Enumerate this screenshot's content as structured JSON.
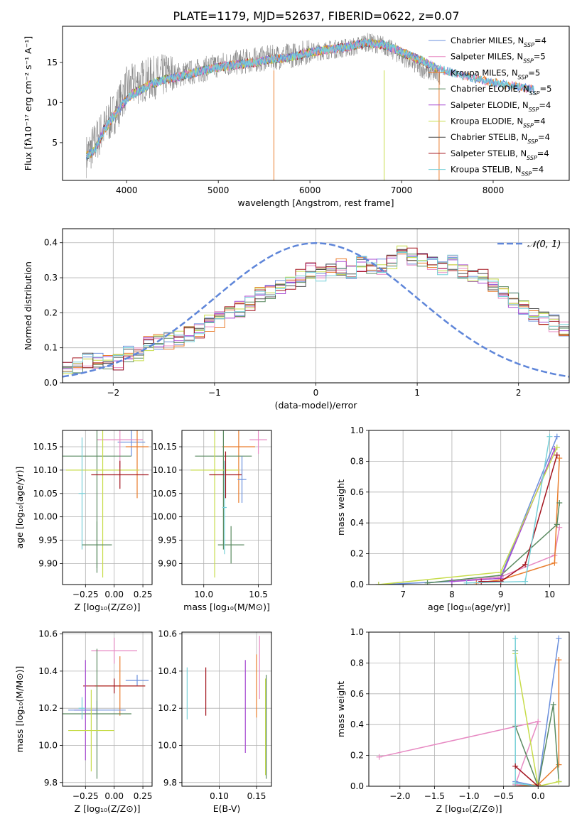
{
  "figure": {
    "title": "PLATE=1179, MJD=52637, FIBERID=0622, z=0.07"
  },
  "colors": {
    "series": [
      "#6a8fdc",
      "#e78ac3",
      "#e97d2d",
      "#5a8a60",
      "#a74ad2",
      "#c7dc4a",
      "#4e4e4e",
      "#a3141e",
      "#77d0d8"
    ],
    "data": "#808080",
    "normal": "#5f86d9",
    "grid": "#b0b0b0"
  },
  "chart_data": [
    {
      "panel": "spectrum",
      "type": "line",
      "xlabel": "wavelength [Angstrom, rest frame]",
      "ylabel": "Flux [fλ10⁻¹⁷ erg cm⁻² s⁻¹ A⁻¹]",
      "xlim": [
        3300,
        8830
      ],
      "ylim": [
        0.3,
        19.5
      ],
      "xticks": [
        4000,
        5000,
        6000,
        7000,
        8000
      ],
      "yticks": [
        5,
        10,
        15
      ],
      "grid": false,
      "legend_position": "upper right",
      "legend": [
        {
          "main": "Chabrier MILES, N",
          "sub": "SSP",
          "tail": "=4"
        },
        {
          "main": "Salpeter MILES, N",
          "sub": "SSP",
          "tail": "=5"
        },
        {
          "main": "Kroupa MILES, N",
          "sub": "SSP",
          "tail": "=5"
        },
        {
          "main": "Chabrier ELODIE, N",
          "sub": "SSP",
          "tail": "=5"
        },
        {
          "main": "Salpeter ELODIE, N",
          "sub": "SSP",
          "tail": "=4"
        },
        {
          "main": "Kroupa ELODIE, N",
          "sub": "SSP",
          "tail": "=4"
        },
        {
          "main": "Chabrier STELIB, N",
          "sub": "SSP",
          "tail": "=4"
        },
        {
          "main": "Salpeter STELIB, N",
          "sub": "SSP",
          "tail": "=4"
        },
        {
          "main": "Kroupa STELIB, N",
          "sub": "SSP",
          "tail": "=4"
        }
      ],
      "data_envelope": {
        "x": [
          3560,
          3700,
          3900,
          4000,
          4200,
          4500,
          4800,
          5000,
          5200,
          5500,
          5800,
          6000,
          6200,
          6500,
          6600,
          6800,
          7000,
          7200,
          7400
        ],
        "y": [
          2.5,
          5.0,
          8.5,
          11.0,
          12.0,
          12.8,
          13.5,
          14.2,
          14.5,
          15.0,
          15.4,
          15.9,
          16.2,
          16.6,
          17.2,
          16.8,
          15.5,
          14.0,
          13.0
        ]
      },
      "model_curve": {
        "x": [
          3550,
          3650,
          3750,
          3850,
          3950,
          4050,
          4150,
          4250,
          4400,
          4600,
          4800,
          5000,
          5200,
          5400,
          5600,
          5800,
          6000,
          6200,
          6400,
          6600,
          6800,
          7000,
          7200,
          7400,
          7600,
          7800,
          8000,
          8200,
          8450
        ],
        "y": [
          3.3,
          4.0,
          6.5,
          8.2,
          9.7,
          11.0,
          11.5,
          12.2,
          12.8,
          13.3,
          13.9,
          14.4,
          14.7,
          15.0,
          15.4,
          15.7,
          16.2,
          16.6,
          16.9,
          17.4,
          17.2,
          16.3,
          15.3,
          14.2,
          13.6,
          13.0,
          12.5,
          12.1,
          11.6
        ]
      }
    },
    {
      "panel": "residual_histogram",
      "type": "histogram",
      "xlabel": "(data-model)/error",
      "ylabel": "Normed distribution",
      "xlim": [
        -2.5,
        2.5
      ],
      "ylim": [
        0,
        0.44
      ],
      "xticks": [
        -2,
        -1,
        0,
        1,
        2
      ],
      "yticks": [
        0.0,
        0.1,
        0.2,
        0.3,
        0.4
      ],
      "grid": true,
      "legend_label": "𝒩(0, 1)",
      "bin_width": 0.1,
      "bin_start": -2.5,
      "hist_values": [
        0.04,
        0.05,
        0.065,
        0.06,
        0.06,
        0.06,
        0.08,
        0.085,
        0.11,
        0.12,
        0.12,
        0.13,
        0.14,
        0.15,
        0.17,
        0.18,
        0.2,
        0.21,
        0.23,
        0.25,
        0.26,
        0.27,
        0.28,
        0.3,
        0.32,
        0.31,
        0.33,
        0.33,
        0.32,
        0.34,
        0.33,
        0.33,
        0.35,
        0.37,
        0.36,
        0.35,
        0.34,
        0.33,
        0.34,
        0.32,
        0.31,
        0.3,
        0.28,
        0.26,
        0.24,
        0.22,
        0.2,
        0.18,
        0.17,
        0.15
      ],
      "hist_values_2": [
        0.12,
        0.11,
        0.1,
        0.09,
        0.08,
        0.07,
        0.06,
        0.055,
        0.05,
        0.05
      ]
    },
    {
      "panel": "age_vs_Z",
      "type": "errorbar",
      "xlabel": "Z [log₁₀(Z/Z⊙)]",
      "ylabel": "age  [log₁₀(age/yr)]",
      "xlim": [
        -0.45,
        0.33
      ],
      "ylim": [
        9.855,
        10.185
      ],
      "xticks": [
        -0.25,
        0.0,
        0.25
      ],
      "xticklabels": [
        "−0.25",
        "0.00",
        "0.25"
      ],
      "yticks": [
        9.9,
        9.95,
        10.0,
        10.05,
        10.1,
        10.15
      ],
      "grid": true,
      "points": [
        {
          "s": 0,
          "x": 0.15,
          "y": 10.16,
          "xerr": 0.12,
          "yerr": 0.03
        },
        {
          "s": 1,
          "x": 0.05,
          "y": 10.165,
          "xerr": 0.2,
          "yerr": 0.06
        },
        {
          "s": 2,
          "x": 0.2,
          "y": 10.15,
          "xerr": 0.1,
          "yerr": 0.11
        },
        {
          "s": 3,
          "x": -0.15,
          "y": 10.13,
          "xerr": 0.3,
          "yerr": 0.25
        },
        {
          "s": 5,
          "x": -0.1,
          "y": 10.1,
          "xerr": 0.32,
          "yerr": 0.23
        },
        {
          "s": 7,
          "x": 0.05,
          "y": 10.09,
          "xerr": 0.25,
          "yerr": 0.03
        },
        {
          "s": 8,
          "x": -0.28,
          "y": 10.05,
          "xerr": 0.03,
          "yerr": 0.12
        },
        {
          "s": 3,
          "x": -0.15,
          "y": 9.94,
          "xerr": 0.13,
          "yerr": 0.05
        }
      ]
    },
    {
      "panel": "age_vs_mass",
      "type": "errorbar",
      "xlabel": "mass [log₁₀(M/M⊙)]",
      "xlim": [
        9.8,
        10.62
      ],
      "ylim": [
        9.855,
        10.185
      ],
      "xticks": [
        10.0,
        10.5
      ],
      "yticks": [
        9.9,
        9.95,
        10.0,
        10.05,
        10.1,
        10.15
      ],
      "grid": true,
      "points": [
        {
          "s": 1,
          "x": 10.5,
          "y": 10.165,
          "xerr": 0.08,
          "yerr": 0.03
        },
        {
          "s": 2,
          "x": 10.32,
          "y": 10.15,
          "xerr": 0.15,
          "yerr": 0.12
        },
        {
          "s": 3,
          "x": 10.18,
          "y": 10.13,
          "xerr": 0.26,
          "yerr": 0.2
        },
        {
          "s": 5,
          "x": 10.1,
          "y": 10.1,
          "xerr": 0.22,
          "yerr": 0.23
        },
        {
          "s": 7,
          "x": 10.2,
          "y": 10.09,
          "xerr": 0.15,
          "yerr": 0.05
        },
        {
          "s": 0,
          "x": 10.35,
          "y": 10.08,
          "xerr": 0.04,
          "yerr": 0.05
        },
        {
          "s": 3,
          "x": 10.25,
          "y": 9.94,
          "xerr": 0.12,
          "yerr": 0.04
        },
        {
          "s": 8,
          "x": 10.19,
          "y": 10.02,
          "xerr": 0.02,
          "yerr": 0.1
        }
      ]
    },
    {
      "panel": "mass_weight_vs_age",
      "type": "line",
      "xlabel": "age  [log₁₀(age/yr)]",
      "ylabel": "mass weight",
      "xlim": [
        6.3,
        10.4
      ],
      "ylim": [
        0,
        1
      ],
      "xticks": [
        7,
        8,
        9,
        10
      ],
      "yticks": [
        0.0,
        0.2,
        0.4,
        0.6,
        0.8,
        1.0
      ],
      "grid": true,
      "series": [
        {
          "s": 0,
          "x": [
            6.5,
            8.0,
            9.0,
            10.15
          ],
          "y": [
            0.0,
            0.02,
            0.05,
            0.96
          ]
        },
        {
          "s": 1,
          "x": [
            8.0,
            9.0,
            10.1,
            10.2
          ],
          "y": [
            0.02,
            0.05,
            0.19,
            0.37
          ]
        },
        {
          "s": 2,
          "x": [
            8.5,
            9.0,
            10.1,
            10.2
          ],
          "y": [
            0.01,
            0.03,
            0.14,
            0.82
          ]
        },
        {
          "s": 3,
          "x": [
            7.5,
            9.0,
            10.15,
            10.2
          ],
          "y": [
            0.01,
            0.06,
            0.39,
            0.53
          ]
        },
        {
          "s": 4,
          "x": [
            8.0,
            9.0,
            10.1
          ],
          "y": [
            0.02,
            0.04,
            0.88
          ]
        },
        {
          "s": 5,
          "x": [
            6.5,
            9.0,
            10.15
          ],
          "y": [
            0.0,
            0.08,
            0.89
          ]
        },
        {
          "s": 7,
          "x": [
            8.6,
            9.0,
            9.5,
            10.15
          ],
          "y": [
            0.02,
            0.02,
            0.13,
            0.84
          ]
        },
        {
          "s": 8,
          "x": [
            8.3,
            9.5,
            10.0
          ],
          "y": [
            0.01,
            0.02,
            0.96
          ]
        }
      ]
    },
    {
      "panel": "mass_vs_Z",
      "type": "errorbar",
      "xlabel": "Z [log₁₀(Z/Z⊙)]",
      "ylabel": "mass [log₁₀(M/M⊙)]",
      "xlim": [
        -0.45,
        0.33
      ],
      "ylim": [
        9.78,
        10.61
      ],
      "xticks": [
        -0.25,
        0.0,
        0.25
      ],
      "xticklabels": [
        "−0.25",
        "0.00",
        "0.25"
      ],
      "yticks": [
        9.8,
        10.0,
        10.2,
        10.4,
        10.6
      ],
      "grid": true,
      "points": [
        {
          "s": 1,
          "x": 0.0,
          "y": 10.51,
          "xerr": 0.2,
          "yerr": 0.07
        },
        {
          "s": 0,
          "x": 0.2,
          "y": 10.35,
          "xerr": 0.1,
          "yerr": 0.03
        },
        {
          "s": 2,
          "x": 0.05,
          "y": 10.32,
          "xerr": 0.22,
          "yerr": 0.16
        },
        {
          "s": 7,
          "x": 0.0,
          "y": 10.32,
          "xerr": 0.27,
          "yerr": 0.04
        },
        {
          "s": 4,
          "x": -0.25,
          "y": 10.19,
          "xerr": 0.1,
          "yerr": 0.27
        },
        {
          "s": 0,
          "x": -0.15,
          "y": 10.19,
          "xerr": 0.25,
          "yerr": 0.05
        },
        {
          "s": 3,
          "x": -0.15,
          "y": 10.17,
          "xerr": 0.3,
          "yerr": 0.35
        },
        {
          "s": 5,
          "x": -0.2,
          "y": 10.08,
          "xerr": 0.2,
          "yerr": 0.22
        },
        {
          "s": 8,
          "x": -0.28,
          "y": 10.2,
          "xerr": 0.03,
          "yerr": 0.06
        }
      ]
    },
    {
      "panel": "mass_vs_EBV",
      "type": "errorbar",
      "xlabel": "E(B-V)",
      "xlim": [
        0.05,
        0.17
      ],
      "ylim": [
        9.78,
        10.61
      ],
      "xticks": [
        0.1,
        0.15
      ],
      "yticks": [
        9.8,
        10.0,
        10.2,
        10.4,
        10.6
      ],
      "grid": true,
      "points": [
        {
          "s": 8,
          "x": 0.057,
          "y": 10.28,
          "yerr": 0.14
        },
        {
          "s": 7,
          "x": 0.082,
          "y": 10.29,
          "yerr": 0.13
        },
        {
          "s": 4,
          "x": 0.135,
          "y": 10.21,
          "yerr": 0.25
        },
        {
          "s": 2,
          "x": 0.15,
          "y": 10.32,
          "yerr": 0.17
        },
        {
          "s": 1,
          "x": 0.154,
          "y": 10.42,
          "yerr": 0.17
        },
        {
          "s": 5,
          "x": 0.162,
          "y": 10.1,
          "yerr": 0.26
        },
        {
          "s": 3,
          "x": 0.163,
          "y": 10.1,
          "yerr": 0.28
        }
      ]
    },
    {
      "panel": "mass_weight_vs_Z",
      "type": "line",
      "xlabel": "Z [log₁₀(Z/Z⊙)]",
      "ylabel": "mass weight",
      "xlim": [
        -2.45,
        0.45
      ],
      "ylim": [
        0,
        1
      ],
      "xticks": [
        -2.0,
        -1.5,
        -1.0,
        -0.5,
        0.0
      ],
      "xticklabels": [
        "−2.0",
        "−1.5",
        "−1.0",
        "−0.5",
        "0.0"
      ],
      "yticks": [
        0.0,
        0.2,
        0.4,
        0.6,
        0.8,
        1.0
      ],
      "grid": true,
      "series": [
        {
          "s": 1,
          "x": [
            -2.3,
            0.0,
            -0.33,
            0.0
          ],
          "y": [
            0.19,
            0.42,
            0.01,
            0.0
          ]
        },
        {
          "s": 0,
          "x": [
            -0.33,
            0.0,
            0.3
          ],
          "y": [
            0.03,
            0.0,
            0.96
          ]
        },
        {
          "s": 2,
          "x": [
            -0.33,
            0.0,
            0.3,
            0.3
          ],
          "y": [
            0.0,
            0.01,
            0.14,
            0.82
          ]
        },
        {
          "s": 3,
          "x": [
            -0.33,
            -0.33,
            0.0,
            0.22,
            0.3
          ],
          "y": [
            0.88,
            0.39,
            0.0,
            0.53,
            0.03
          ]
        },
        {
          "s": 5,
          "x": [
            -0.33,
            0.0,
            0.3
          ],
          "y": [
            0.86,
            0.0,
            0.03
          ]
        },
        {
          "s": 8,
          "x": [
            -0.33,
            -0.33,
            0.0
          ],
          "y": [
            0.96,
            0.02,
            0.0
          ]
        },
        {
          "s": 7,
          "x": [
            -0.33,
            0.0
          ],
          "y": [
            0.13,
            0.0
          ]
        }
      ]
    }
  ]
}
